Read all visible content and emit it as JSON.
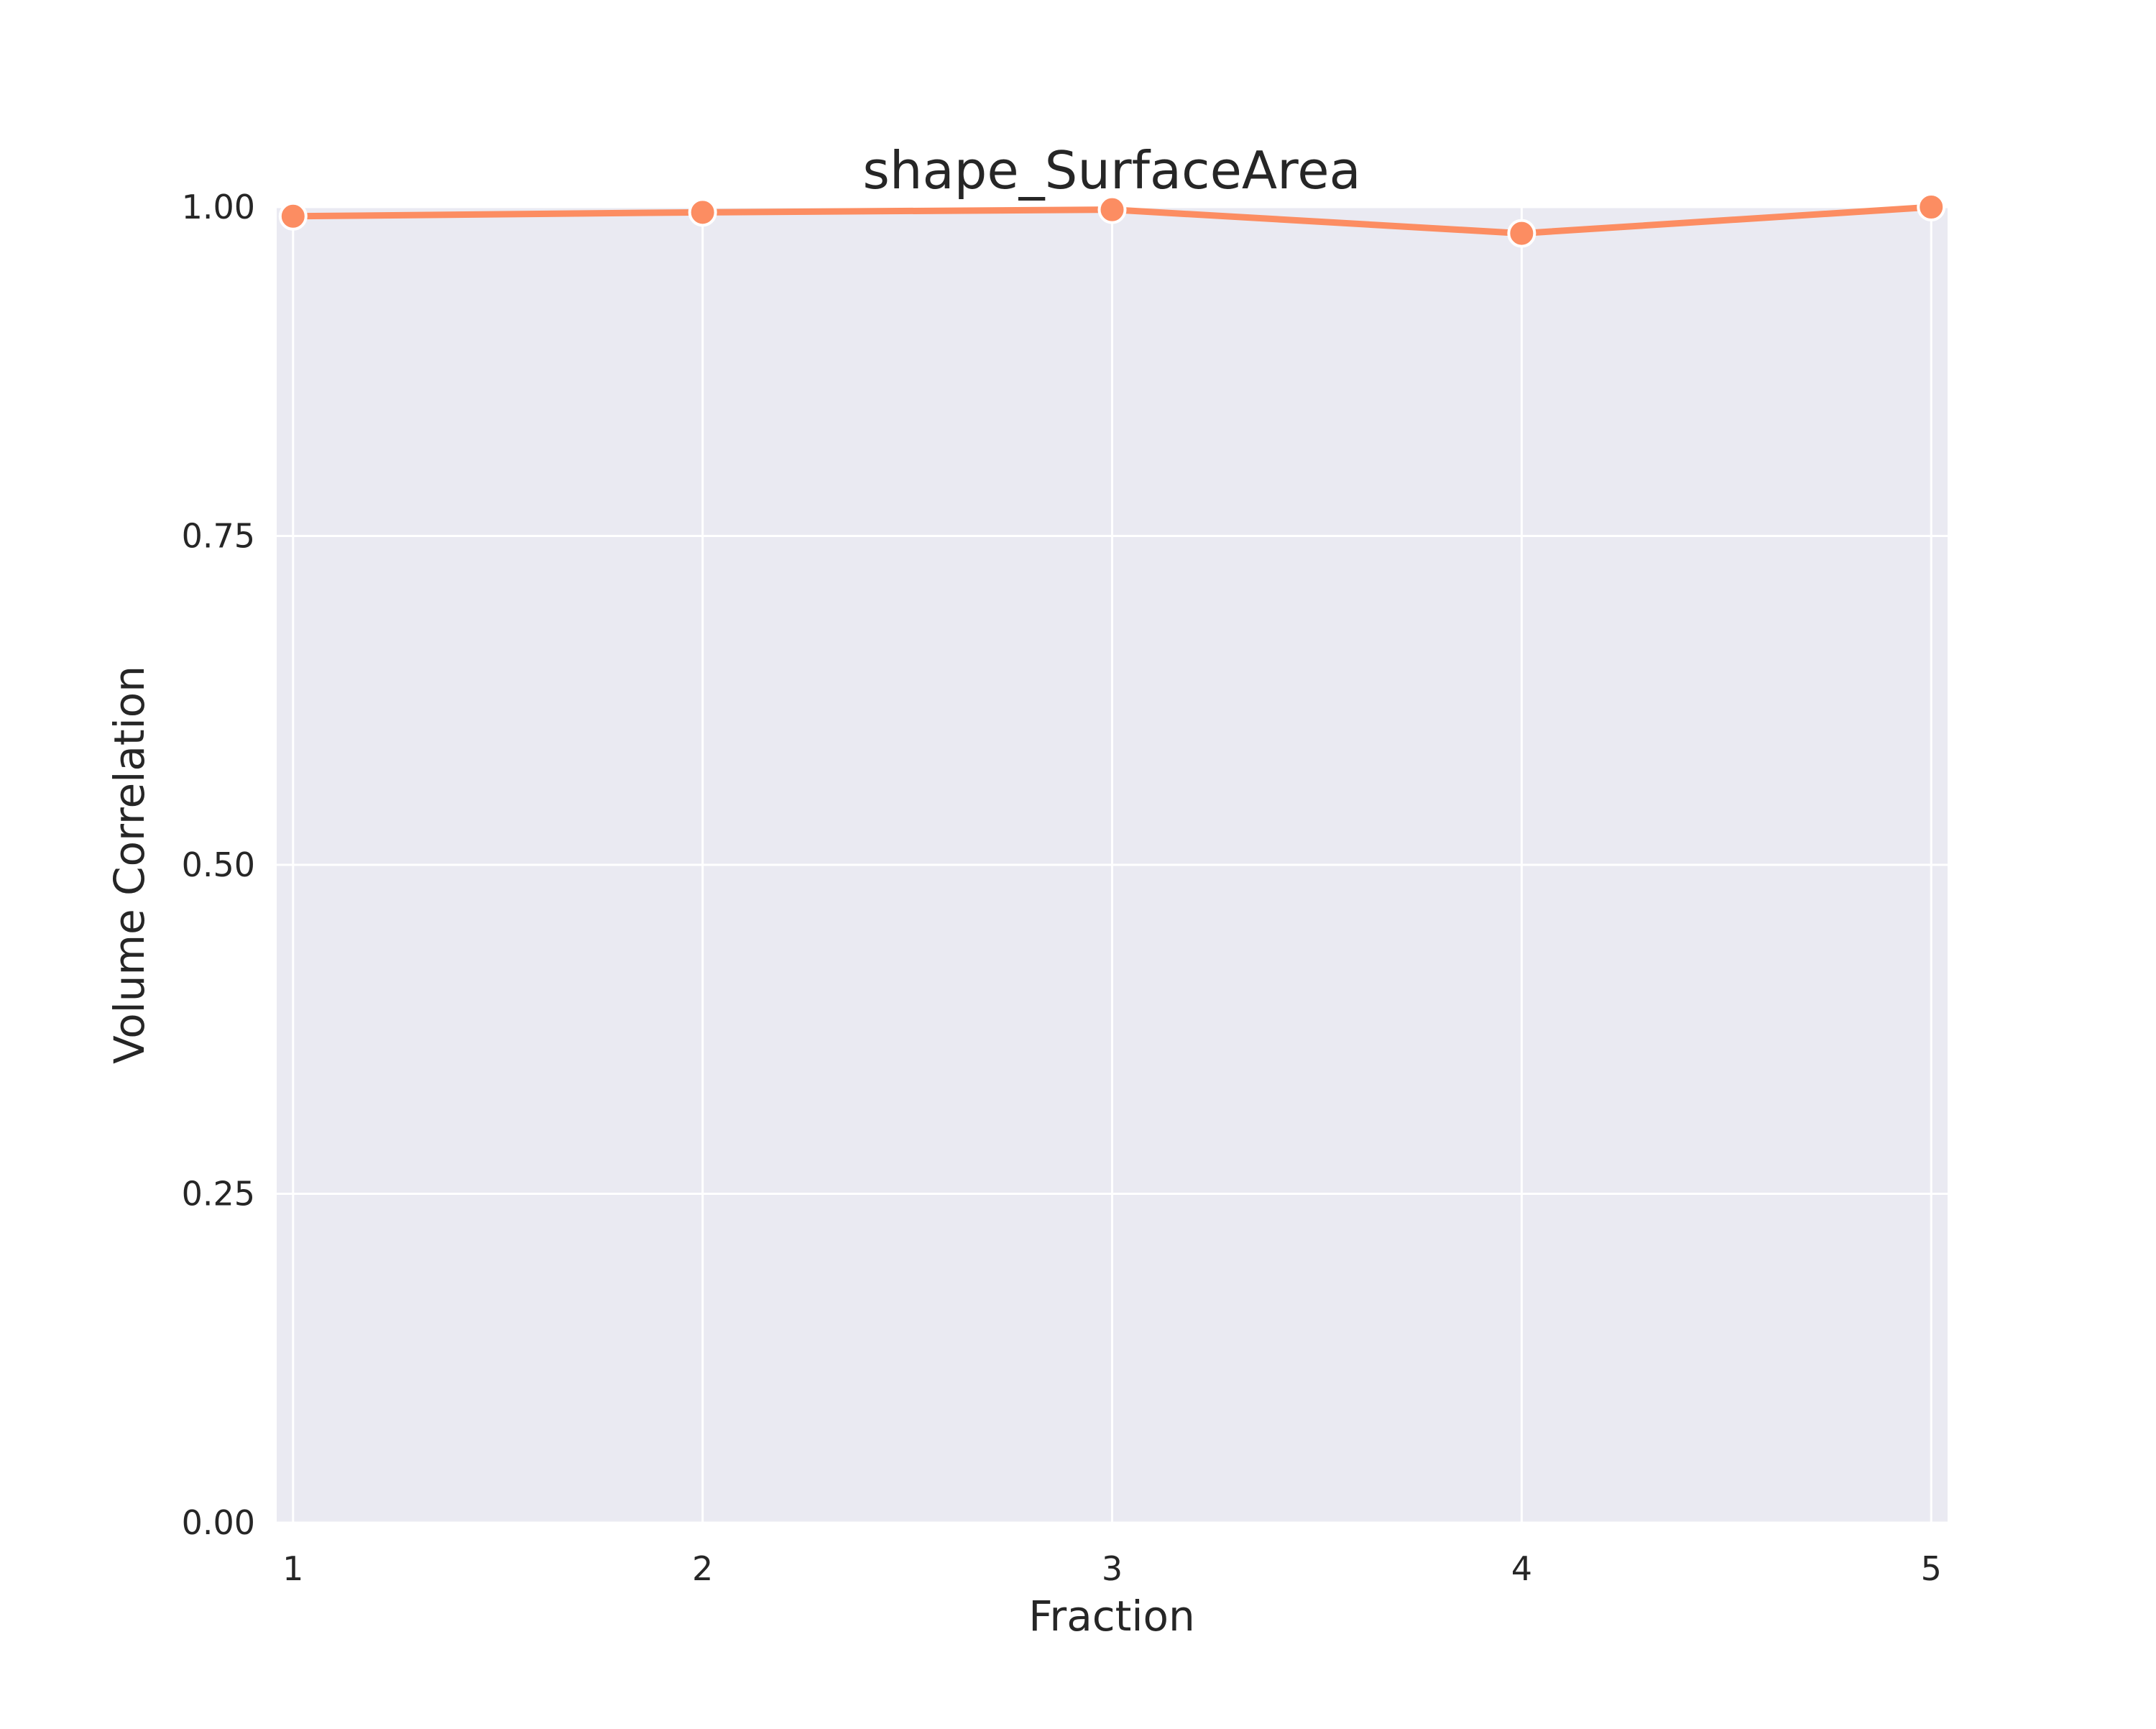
{
  "chart_data": {
    "type": "line",
    "title": "shape_SurfaceArea",
    "xlabel": "Fraction",
    "ylabel": "Volume Correlation",
    "x": [
      1,
      2,
      3,
      4,
      5
    ],
    "x_tick_labels": [
      "1",
      "2",
      "3",
      "4",
      "5"
    ],
    "y_tick_labels": [
      "0.00",
      "0.25",
      "0.50",
      "0.75",
      "1.00"
    ],
    "y_ticks": [
      0,
      0.25,
      0.5,
      0.75,
      1.0
    ],
    "xlim": [
      0.96,
      5.04
    ],
    "ylim": [
      0,
      1.0
    ],
    "grid": true,
    "series": [
      {
        "values": [
          0.993,
          0.996,
          0.998,
          0.98,
          1.0
        ],
        "color": "#fc8d62"
      }
    ],
    "background_color": "#eaeaf2",
    "grid_color": "#ffffff"
  }
}
